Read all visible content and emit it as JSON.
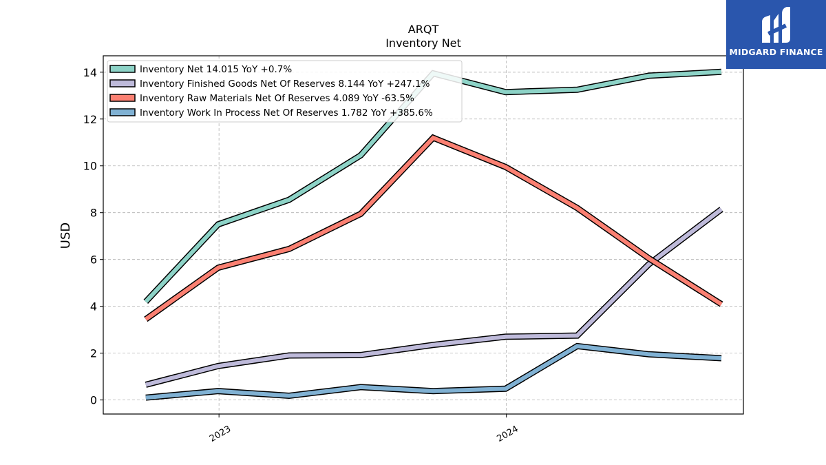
{
  "chart_data": {
    "type": "line",
    "title": "ARQT",
    "subtitle": "Inventory Net",
    "ylabel": "USD",
    "xlabel": "",
    "ylim": [
      -0.6,
      14.7
    ],
    "y_ticks": [
      0,
      2,
      4,
      6,
      8,
      10,
      12,
      14
    ],
    "x_ticks": [
      {
        "label": "2023",
        "at": "2023-01-01"
      },
      {
        "label": "2024",
        "at": "2024-01-01"
      }
    ],
    "xlim": [
      "2022-08-07",
      "2024-10-28"
    ],
    "x": [
      "2022-09-30",
      "2022-12-31",
      "2023-03-31",
      "2023-06-30",
      "2023-09-30",
      "2023-12-31",
      "2024-03-31",
      "2024-06-30",
      "2024-09-30"
    ],
    "grid": true,
    "legend_position": "top-left",
    "series": [
      {
        "name": "Inventory Net",
        "legend": "Inventory Net  14.015 YoY +0.7%",
        "color": "#8dd3c7",
        "values": [
          4.2,
          7.5,
          8.55,
          10.45,
          13.95,
          13.15,
          13.25,
          13.85,
          14.015
        ]
      },
      {
        "name": "Inventory Finished Goods Net Of Reserves",
        "legend": "Inventory Finished Goods Net Of Reserves  8.144 YoY +247.1%",
        "color": "#bebada",
        "values": [
          0.65,
          1.45,
          1.9,
          1.92,
          2.35,
          2.7,
          2.75,
          5.8,
          8.144
        ]
      },
      {
        "name": "Inventory Raw Materials Net Of Reserves",
        "legend": "Inventory Raw Materials Net Of Reserves  4.089 YoY -63.5%",
        "color": "#fb8072",
        "values": [
          3.45,
          5.65,
          6.45,
          7.95,
          11.2,
          9.95,
          8.2,
          6.05,
          4.089
        ]
      },
      {
        "name": "Inventory Work In Process Net Of Reserves",
        "legend": "Inventory Work In Process Net Of Reserves  1.782 YoY +385.6%",
        "color": "#80b1d3",
        "values": [
          0.1,
          0.38,
          0.18,
          0.55,
          0.38,
          0.48,
          2.3,
          1.95,
          1.782
        ]
      }
    ]
  },
  "brand": {
    "name": "MIDGARD FINANCE",
    "color": "#2a56ad"
  }
}
